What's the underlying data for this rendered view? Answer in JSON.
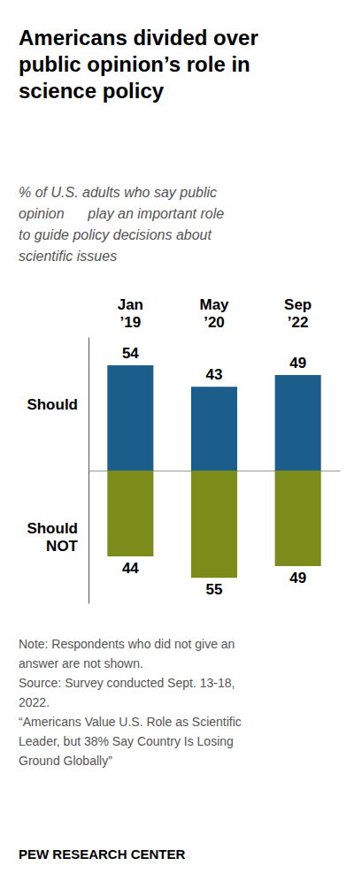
{
  "chart_data": {
    "type": "bar",
    "title": "Americans divided over\npublic opinion’s role in\nscience policy",
    "subtitle": "% of U.S. adults who say public\nopinion      play an important role\nto guide policy decisions about\nscientific issues",
    "categories": [
      "Jan\n’19",
      "May\n’20",
      "Sep\n’22"
    ],
    "series": [
      {
        "name": "Should",
        "color": "#1B5E8C",
        "values": [
          54,
          43,
          49
        ]
      },
      {
        "name": "Should\nNOT",
        "color": "#7B8C1A",
        "values": [
          44,
          55,
          49
        ],
        "axis": "y2"
      }
    ],
    "ylim": [
      0,
      68
    ],
    "y2lim": [
      0,
      68
    ],
    "data_labels": true,
    "tick_labels": "x",
    "grid": false,
    "note": "Note: Respondents who did not give an\nanswer are not shown.\nSource: Survey conducted Sept. 13-18,\n2022.\n“Americans Value U.S. Role as Scientific\nLeader, but 38% Say Country Is Losing\nGround Globally”",
    "footer": "PEW RESEARCH CENTER"
  }
}
